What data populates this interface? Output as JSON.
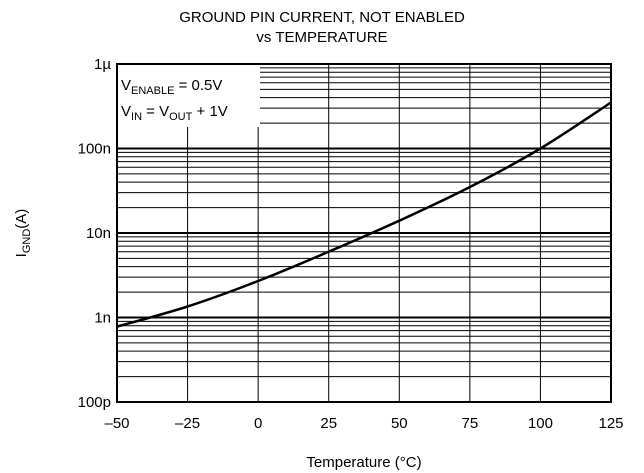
{
  "title_line1": "GROUND PIN CURRENT, NOT ENABLED",
  "title_line2": "vs TEMPERATURE",
  "chart_data": {
    "type": "line",
    "title": "GROUND PIN CURRENT, NOT ENABLED vs TEMPERATURE",
    "xlabel": "Temperature (°C)",
    "ylabel_main": "I",
    "ylabel_sub": "GND",
    "ylabel_unit": "(A)",
    "x_scale": "linear",
    "y_scale": "log",
    "xlim": [
      -50,
      125
    ],
    "ylim": [
      1e-10,
      1e-06
    ],
    "x_ticks": [
      -50,
      -25,
      0,
      25,
      50,
      75,
      100,
      125
    ],
    "x_tick_labels": [
      "–50",
      "–25",
      "0",
      "25",
      "50",
      "75",
      "100",
      "125"
    ],
    "y_ticks": [
      1e-10,
      1e-09,
      1e-08,
      1e-07,
      1e-06
    ],
    "y_tick_labels": [
      "100p",
      "1n",
      "10n",
      "100n",
      "1µ"
    ],
    "grid": true,
    "annotation": {
      "line1_main": "V",
      "line1_sub": "ENABLE",
      "line1_rest": " = 0.5V",
      "line2_main": "V",
      "line2_sub": "IN",
      "line2_mid": " = V",
      "line2_sub2": "OUT",
      "line2_rest": " + 1V"
    },
    "series": [
      {
        "x": [
          -50,
          -25,
          0,
          25,
          50,
          75,
          100,
          125
        ],
        "y": [
          7.8e-10,
          1.35e-09,
          2.7e-09,
          6e-09,
          1.4e-08,
          3.5e-08,
          1e-07,
          3.5e-07
        ]
      }
    ],
    "colors": {
      "line": "#000000",
      "grid": "#000000",
      "background": "#ffffff"
    }
  }
}
